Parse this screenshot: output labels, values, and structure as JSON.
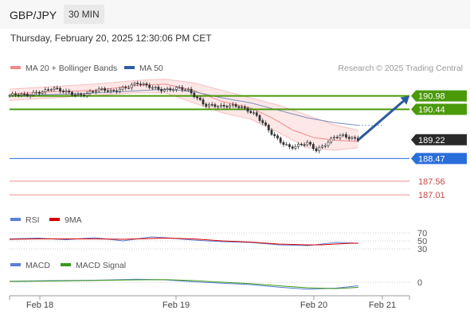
{
  "header": {
    "symbol": "GBP/JPY",
    "timeframe": "30 MIN"
  },
  "datetime": "Thursday, February 20, 2025 12:30:06 PM CET",
  "credit": "Research © 2025 Trading Central",
  "legend_main": [
    {
      "label": "MA 20 + Bollinger Bands",
      "color": "#f08a8a"
    },
    {
      "label": "MA 50",
      "color": "#2f5aa6"
    }
  ],
  "legend_rsi": [
    {
      "label": "RSI",
      "color": "#5b7fd6"
    },
    {
      "label": "9MA",
      "color": "#d80000"
    }
  ],
  "legend_macd": [
    {
      "label": "MACD",
      "color": "#5b7fd6"
    },
    {
      "label": "MACD Signal",
      "color": "#3a9a1a"
    }
  ],
  "colors": {
    "resistance": "#4a9a0a",
    "support": "#2a6edb",
    "pivot": "#e39090",
    "last_price": "#2a2a2a",
    "arrow": "#2a5aa0",
    "candle": "#333333",
    "band_fill": "#fde3e3"
  },
  "chart_data": [
    {
      "type": "candlestick",
      "symbol": "GBP/JPY",
      "timeframe": "30 MIN",
      "x_ticks": [
        "Feb 18",
        "Feb 19",
        "Feb 20",
        "Feb 21"
      ],
      "ylim": [
        186.6,
        191.7
      ],
      "levels": [
        {
          "value": 190.98,
          "label": "190.98",
          "kind": "resistance"
        },
        {
          "value": 190.44,
          "label": "190.44",
          "kind": "resistance"
        },
        {
          "value": 189.22,
          "label": "189.22",
          "kind": "last"
        },
        {
          "value": 188.47,
          "label": "188.47",
          "kind": "support"
        },
        {
          "value": 187.56,
          "label": "187.56",
          "kind": "pivot"
        },
        {
          "value": 187.01,
          "label": "187.01",
          "kind": "pivot"
        }
      ],
      "close_path": [
        [
          0,
          191.0
        ],
        [
          6,
          191.05
        ],
        [
          12,
          191.0
        ],
        [
          18,
          191.1
        ],
        [
          24,
          191.15
        ],
        [
          30,
          191.3
        ],
        [
          36,
          191.2
        ],
        [
          42,
          191.1
        ],
        [
          48,
          191.0
        ],
        [
          54,
          191.05
        ],
        [
          60,
          191.2
        ],
        [
          66,
          191.25
        ],
        [
          72,
          191.15
        ],
        [
          78,
          191.25
        ],
        [
          84,
          191.35
        ],
        [
          90,
          191.5
        ],
        [
          96,
          191.4
        ],
        [
          102,
          191.3
        ],
        [
          108,
          191.2
        ],
        [
          114,
          191.25
        ],
        [
          120,
          191.3
        ],
        [
          126,
          191.2
        ],
        [
          132,
          190.9
        ],
        [
          138,
          190.6
        ],
        [
          144,
          190.6
        ],
        [
          150,
          190.55
        ],
        [
          156,
          190.6
        ],
        [
          162,
          190.55
        ],
        [
          168,
          190.4
        ],
        [
          174,
          190.2
        ],
        [
          180,
          189.8
        ],
        [
          186,
          189.4
        ],
        [
          192,
          189.1
        ],
        [
          198,
          188.9
        ],
        [
          204,
          189.0
        ],
        [
          210,
          189.1
        ],
        [
          216,
          188.8
        ],
        [
          222,
          189.0
        ],
        [
          228,
          189.3
        ],
        [
          234,
          189.4
        ],
        [
          240,
          189.3
        ],
        [
          246,
          189.22
        ]
      ],
      "ma50_path": [
        [
          0,
          191.0
        ],
        [
          40,
          191.05
        ],
        [
          80,
          191.15
        ],
        [
          110,
          191.25
        ],
        [
          130,
          191.15
        ],
        [
          150,
          190.9
        ],
        [
          170,
          190.7
        ],
        [
          190,
          190.4
        ],
        [
          210,
          190.1
        ],
        [
          230,
          189.9
        ],
        [
          246,
          189.8
        ]
      ],
      "ma50_projection": [
        [
          246,
          189.8
        ],
        [
          264,
          189.8
        ]
      ],
      "ma20_path": [
        [
          0,
          191.05
        ],
        [
          30,
          191.15
        ],
        [
          60,
          191.2
        ],
        [
          90,
          191.4
        ],
        [
          110,
          191.45
        ],
        [
          130,
          191.2
        ],
        [
          150,
          190.75
        ],
        [
          170,
          190.5
        ],
        [
          185,
          190.1
        ],
        [
          200,
          189.6
        ],
        [
          215,
          189.3
        ],
        [
          230,
          189.2
        ],
        [
          246,
          189.15
        ]
      ],
      "bb_upper": [
        [
          0,
          191.25
        ],
        [
          30,
          191.35
        ],
        [
          60,
          191.45
        ],
        [
          90,
          191.6
        ],
        [
          110,
          191.65
        ],
        [
          130,
          191.5
        ],
        [
          150,
          191.2
        ],
        [
          170,
          190.9
        ],
        [
          190,
          190.6
        ],
        [
          210,
          190.2
        ],
        [
          230,
          189.8
        ],
        [
          246,
          189.6
        ]
      ],
      "bb_lower": [
        [
          0,
          190.8
        ],
        [
          30,
          190.9
        ],
        [
          60,
          191.0
        ],
        [
          90,
          191.1
        ],
        [
          110,
          191.1
        ],
        [
          130,
          190.7
        ],
        [
          150,
          190.3
        ],
        [
          170,
          190.05
        ],
        [
          190,
          189.5
        ],
        [
          210,
          188.9
        ],
        [
          230,
          188.8
        ],
        [
          246,
          188.9
        ]
      ],
      "forecast_arrow": {
        "from": [
          246,
          189.22
        ],
        "to": [
          282,
          190.98
        ]
      },
      "x_domain": [
        0,
        282
      ]
    },
    {
      "type": "line",
      "name": "RSI",
      "ylim": [
        20,
        80
      ],
      "y_ticks": [
        {
          "value": 70,
          "label": "70"
        },
        {
          "value": 50,
          "label": "50"
        },
        {
          "value": 30,
          "label": "30"
        }
      ],
      "x_domain": [
        0,
        282
      ],
      "series": [
        {
          "name": "RSI",
          "points": [
            [
              0,
              55
            ],
            [
              20,
              57
            ],
            [
              40,
              53
            ],
            [
              60,
              58
            ],
            [
              80,
              50
            ],
            [
              100,
              60
            ],
            [
              110,
              58
            ],
            [
              130,
              52
            ],
            [
              150,
              48
            ],
            [
              170,
              46
            ],
            [
              190,
              40
            ],
            [
              210,
              38
            ],
            [
              220,
              42
            ],
            [
              230,
              46
            ],
            [
              240,
              45
            ],
            [
              246,
              44
            ]
          ]
        },
        {
          "name": "9MA",
          "points": [
            [
              0,
              54
            ],
            [
              20,
              55
            ],
            [
              40,
              55
            ],
            [
              60,
              55
            ],
            [
              80,
              54
            ],
            [
              100,
              56
            ],
            [
              110,
              57
            ],
            [
              130,
              55
            ],
            [
              150,
              50
            ],
            [
              170,
              47
            ],
            [
              190,
              42
            ],
            [
              210,
              40
            ],
            [
              220,
              40
            ],
            [
              230,
              42
            ],
            [
              240,
              44
            ],
            [
              246,
              44
            ]
          ]
        }
      ]
    },
    {
      "type": "line",
      "name": "MACD",
      "ylim": [
        -0.6,
        0.6
      ],
      "y_ticks": [
        {
          "value": 0,
          "label": "0"
        }
      ],
      "x_domain": [
        0,
        282
      ],
      "series": [
        {
          "name": "MACD",
          "points": [
            [
              0,
              0.05
            ],
            [
              30,
              0.08
            ],
            [
              60,
              0.1
            ],
            [
              90,
              0.15
            ],
            [
              110,
              0.12
            ],
            [
              130,
              0.02
            ],
            [
              150,
              -0.05
            ],
            [
              170,
              -0.12
            ],
            [
              190,
              -0.25
            ],
            [
              210,
              -0.35
            ],
            [
              230,
              -0.3
            ],
            [
              246,
              -0.18
            ]
          ]
        },
        {
          "name": "MACD Signal",
          "points": [
            [
              0,
              0.04
            ],
            [
              30,
              0.06
            ],
            [
              60,
              0.09
            ],
            [
              90,
              0.12
            ],
            [
              110,
              0.13
            ],
            [
              130,
              0.08
            ],
            [
              150,
              0.0
            ],
            [
              170,
              -0.07
            ],
            [
              190,
              -0.18
            ],
            [
              210,
              -0.28
            ],
            [
              230,
              -0.32
            ],
            [
              246,
              -0.26
            ]
          ]
        }
      ]
    }
  ]
}
